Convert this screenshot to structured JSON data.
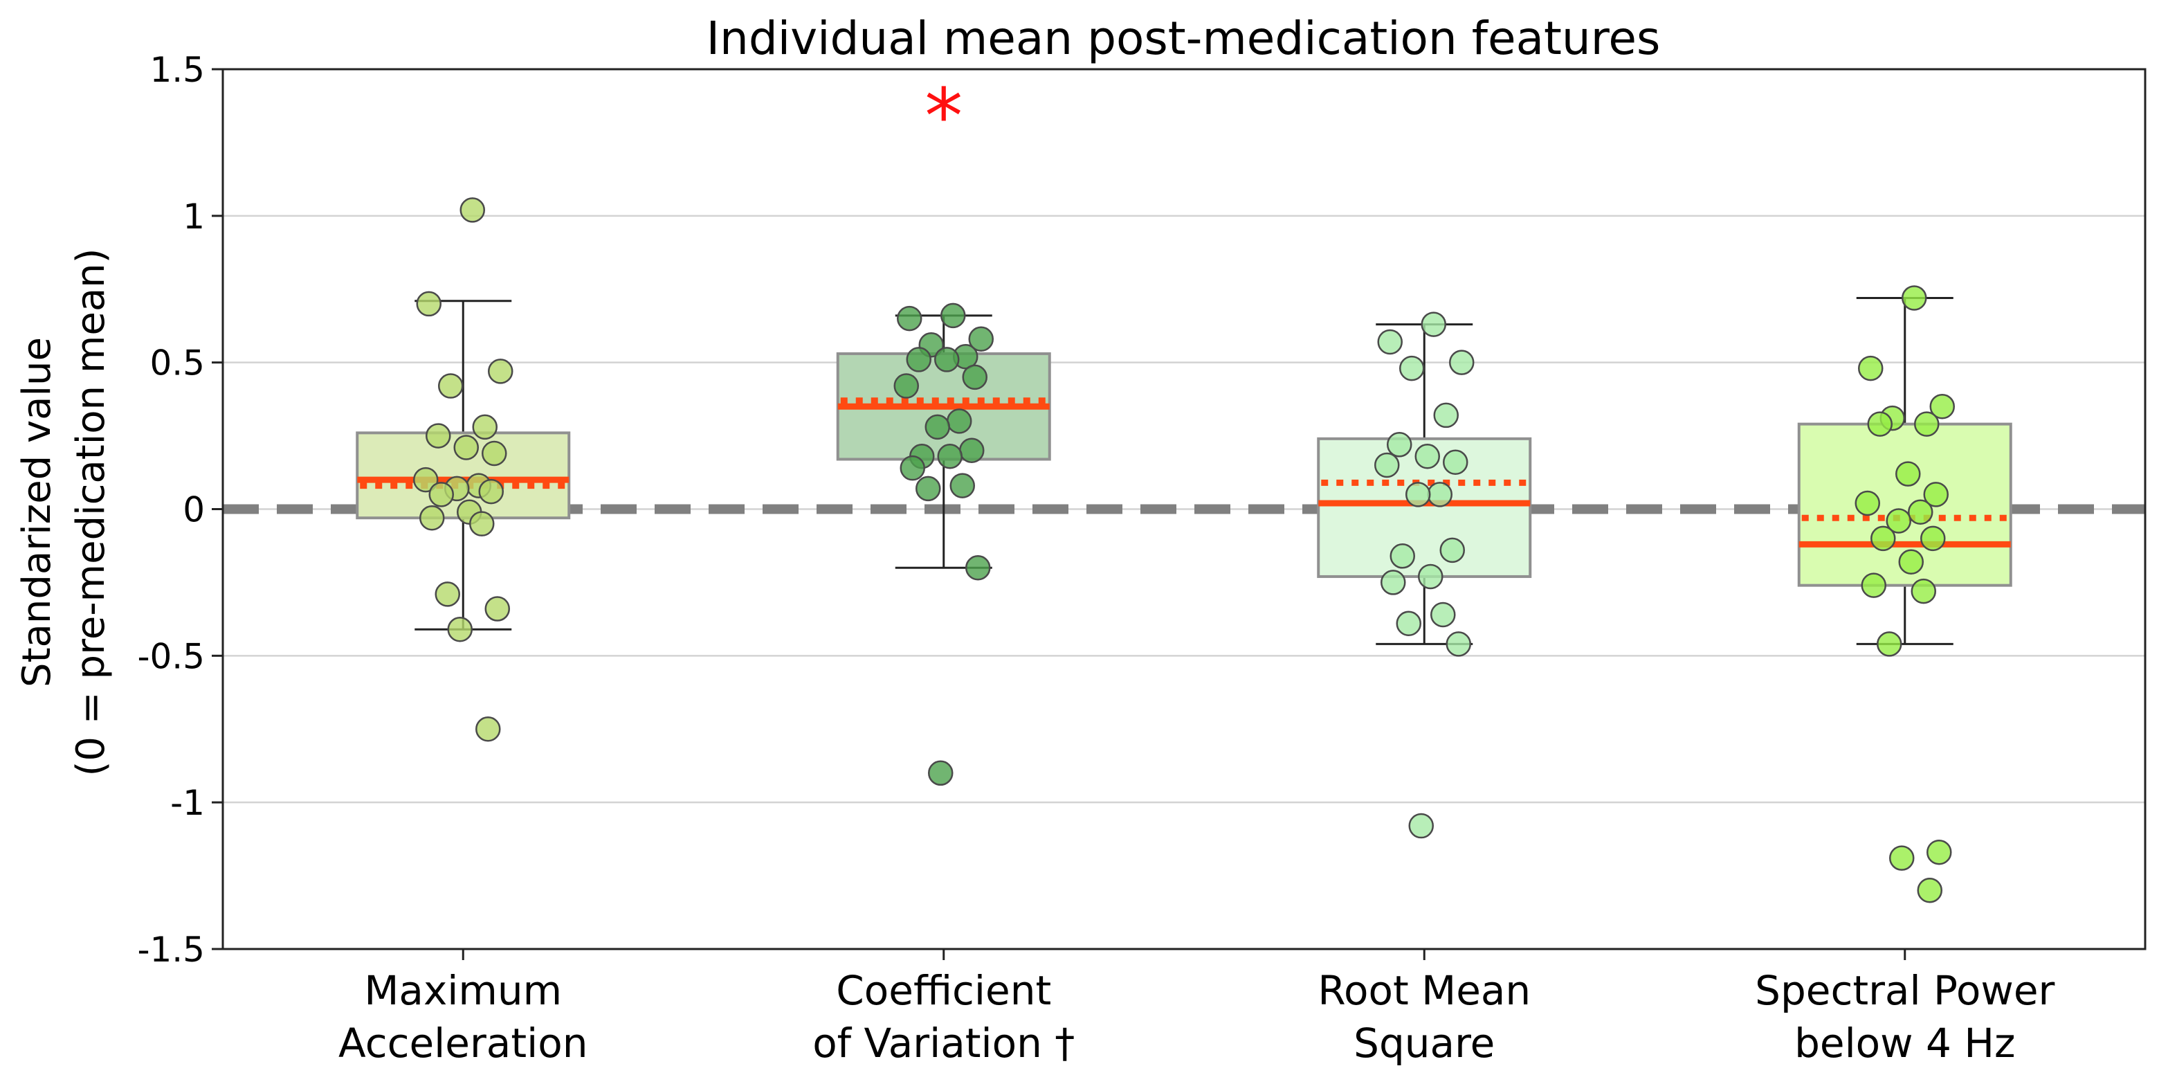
{
  "chart_data": {
    "type": "box",
    "title": "Individual mean post-medication features",
    "ylabel": [
      "Standarized value",
      "(0 = pre-medication mean)"
    ],
    "xlabel": "",
    "ylim": [
      -1.5,
      1.5
    ],
    "yticks": [
      1.5,
      1,
      0.5,
      0,
      -0.5,
      -1,
      -1.5
    ],
    "ytick_labels": [
      "1.5",
      "1",
      "0.5",
      "0",
      "-0.5",
      "-1",
      "-1.5"
    ],
    "grid": "horizontal",
    "reference_line": 0,
    "categories": [
      {
        "label": [
          "Maximum",
          "Acceleration"
        ],
        "box_color": "#dcebb8",
        "point_color": "#b5d96c",
        "q1": -0.03,
        "q3": 0.26,
        "median": 0.1,
        "mean": 0.08,
        "whisker_low": -0.41,
        "whisker_high": 0.71,
        "significant": false,
        "points": [
          1.02,
          0.7,
          0.47,
          0.42,
          0.28,
          0.25,
          0.21,
          0.19,
          0.1,
          0.08,
          0.07,
          0.06,
          0.05,
          -0.01,
          -0.03,
          -0.05,
          -0.29,
          -0.34,
          -0.41,
          -0.75
        ]
      },
      {
        "label": [
          "Coefficient",
          "of Variation †"
        ],
        "box_color": "#b3d6b3",
        "point_color": "#4ea24e",
        "q1": 0.17,
        "q3": 0.53,
        "median": 0.35,
        "mean": 0.37,
        "whisker_low": -0.2,
        "whisker_high": 0.66,
        "significant": true,
        "significance_marker": "*",
        "points": [
          0.66,
          0.65,
          0.58,
          0.56,
          0.52,
          0.51,
          0.51,
          0.45,
          0.42,
          0.3,
          0.28,
          0.2,
          0.18,
          0.18,
          0.14,
          0.08,
          0.07,
          -0.2,
          -0.9
        ]
      },
      {
        "label": [
          "Root Mean",
          "Square"
        ],
        "box_color": "#ddf7dd",
        "point_color": "#a6eaa6",
        "q1": -0.23,
        "q3": 0.24,
        "median": 0.02,
        "mean": 0.09,
        "whisker_low": -0.46,
        "whisker_high": 0.63,
        "significant": false,
        "points": [
          0.63,
          0.57,
          0.5,
          0.48,
          0.32,
          0.22,
          0.18,
          0.16,
          0.15,
          0.05,
          0.05,
          -0.14,
          -0.16,
          -0.23,
          -0.25,
          -0.36,
          -0.39,
          -0.46,
          -1.08
        ]
      },
      {
        "label": [
          "Spectral Power",
          "below 4 Hz"
        ],
        "box_color": "#d9fcb0",
        "point_color": "#96ee45",
        "q1": -0.26,
        "q3": 0.29,
        "median": -0.12,
        "mean": -0.03,
        "whisker_low": -0.46,
        "whisker_high": 0.72,
        "significant": false,
        "points": [
          0.72,
          0.48,
          0.35,
          0.31,
          0.29,
          0.29,
          0.12,
          0.05,
          0.02,
          -0.01,
          -0.04,
          -0.1,
          -0.1,
          -0.18,
          -0.26,
          -0.28,
          -0.46,
          -1.17,
          -1.19,
          -1.3
        ]
      }
    ]
  },
  "colors": {
    "median_line": "#ff4a12",
    "mean_line": "#ff4a12",
    "reference_line": "#808080",
    "grid": "#d3d3d3",
    "significance": "#ff1010",
    "box_edge": "#909090",
    "whisker": "#222222",
    "point_edge": "#4a4a4a"
  }
}
